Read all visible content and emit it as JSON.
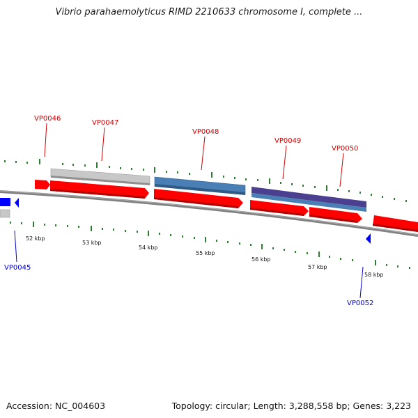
{
  "title": "Vibrio parahaemolyticus RIMD 2210633 chromosome I, complete ...",
  "footer": {
    "accession": "Accession: NC_004603",
    "topology": "Topology: circular; Length: 3,288,558 bp; Genes: 3,223"
  },
  "ticks": [
    "52 kbp",
    "53 kbp",
    "54 kbp",
    "55 kbp",
    "56 kbp",
    "57 kbp",
    "58 kbp"
  ],
  "forward_genes": [
    "VP0046",
    "VP0047",
    "VP0048",
    "VP0049",
    "VP0050"
  ],
  "reverse_genes": [
    "VP0045",
    "VP0052"
  ],
  "colors": {
    "forward_label": "#cc0000",
    "reverse_label": "#0000cc",
    "cds": "#ff0000",
    "gene_grey": "#c8c8c8",
    "gene_blue": "#4a7fb5",
    "gene_purple": "#4b3f8f",
    "backbone": "#808080",
    "tick": "#2e7d32",
    "reverse_arrow": "#0000ff"
  }
}
